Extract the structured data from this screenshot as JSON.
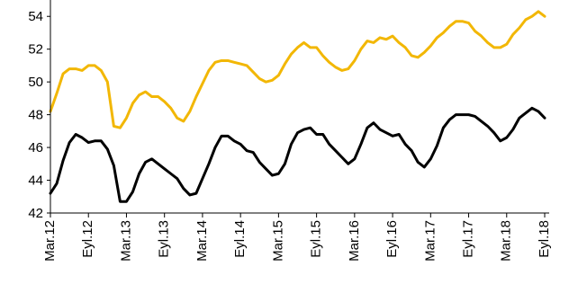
{
  "chart_data": {
    "type": "line",
    "title": "",
    "xlabel": "",
    "ylabel": "",
    "ylim": [
      42,
      55
    ],
    "yticks": [
      42,
      44,
      46,
      48,
      50,
      52,
      54
    ],
    "grid": false,
    "legend": "none",
    "x_tick_labels": [
      {
        "label": "Mar.12",
        "index": 0
      },
      {
        "label": "Eyl.12",
        "index": 6
      },
      {
        "label": "Mar.13",
        "index": 12
      },
      {
        "label": "Eyl.13",
        "index": 18
      },
      {
        "label": "Mar.14",
        "index": 24
      },
      {
        "label": "Eyl.14",
        "index": 30
      },
      {
        "label": "Mar.15",
        "index": 36
      },
      {
        "label": "Eyl.15",
        "index": 42
      },
      {
        "label": "Mar.16",
        "index": 48
      },
      {
        "label": "Eyl.16",
        "index": 54
      },
      {
        "label": "Mar.17",
        "index": 60
      },
      {
        "label": "Eyl.17",
        "index": 66
      },
      {
        "label": "Mar.18",
        "index": 72
      },
      {
        "label": "Eyl.18",
        "index": 78
      }
    ],
    "series": [
      {
        "color": "#F2B705",
        "values": [
          48.2,
          49.3,
          50.5,
          50.8,
          50.8,
          50.7,
          51.0,
          51.0,
          50.7,
          50.0,
          47.3,
          47.2,
          47.8,
          48.7,
          49.2,
          49.4,
          49.1,
          49.1,
          48.8,
          48.4,
          47.8,
          47.6,
          48.2,
          49.1,
          49.9,
          50.7,
          51.2,
          51.3,
          51.3,
          51.2,
          51.1,
          51.0,
          50.6,
          50.2,
          50.0,
          50.1,
          50.4,
          51.1,
          51.7,
          52.1,
          52.4,
          52.1,
          52.1,
          51.6,
          51.2,
          50.9,
          50.7,
          50.8,
          51.3,
          52.0,
          52.5,
          52.4,
          52.7,
          52.6,
          52.8,
          52.4,
          52.1,
          51.6,
          51.5,
          51.8,
          52.2,
          52.7,
          53.0,
          53.4,
          53.7,
          53.7,
          53.6,
          53.1,
          52.8,
          52.4,
          52.1,
          52.1,
          52.3,
          52.9,
          53.3,
          53.8,
          54.0,
          54.3,
          54.0
        ]
      },
      {
        "color": "#000000",
        "values": [
          43.2,
          43.8,
          45.2,
          46.3,
          46.8,
          46.6,
          46.3,
          46.4,
          46.4,
          45.9,
          44.9,
          42.7,
          42.7,
          43.3,
          44.4,
          45.1,
          45.3,
          45.0,
          44.7,
          44.4,
          44.1,
          43.5,
          43.1,
          43.2,
          44.1,
          45.0,
          46.0,
          46.7,
          46.7,
          46.4,
          46.2,
          45.8,
          45.7,
          45.1,
          44.7,
          44.3,
          44.4,
          45.0,
          46.2,
          46.9,
          47.1,
          47.2,
          46.8,
          46.8,
          46.2,
          45.8,
          45.4,
          45.0,
          45.3,
          46.2,
          47.2,
          47.5,
          47.1,
          46.9,
          46.7,
          46.8,
          46.2,
          45.8,
          45.1,
          44.8,
          45.3,
          46.1,
          47.2,
          47.7,
          48.0,
          48.0,
          48.0,
          47.9,
          47.6,
          47.3,
          46.9,
          46.4,
          46.6,
          47.1,
          47.8,
          48.1,
          48.4,
          48.2,
          47.8
        ]
      }
    ]
  }
}
